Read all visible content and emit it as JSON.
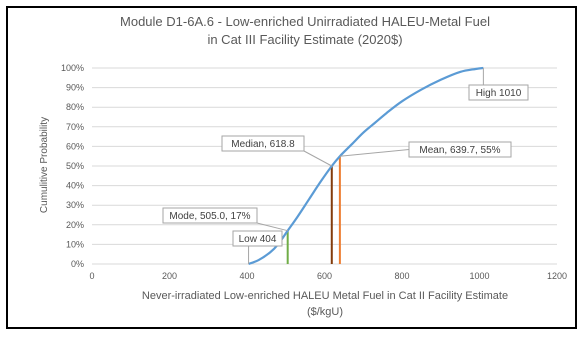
{
  "colors": {
    "curve": "#5b9bd5",
    "mode_line": "#70ad47",
    "median_line": "#843c0c",
    "mean_line": "#ed7d31",
    "grid": "#d9d9d9",
    "text": "#595959"
  },
  "chart_data": {
    "type": "line",
    "title_line1": "Module D1-6A.6 - Low-enriched  Unirradiated HALEU-Metal Fuel",
    "title_line2": "in Cat III Facility Estimate (2020$)",
    "xlabel_line1": "Never-irradiated Low-enriched HALEU Metal Fuel in Cat II Facility Estimate",
    "xlabel_line2": "($/kgU)",
    "ylabel": "Cumulitive Probability",
    "xlim": [
      0,
      1200
    ],
    "ylim": [
      0,
      1
    ],
    "x_ticks": [
      "0",
      "200",
      "400",
      "600",
      "800",
      "1000",
      "1200"
    ],
    "y_ticks": [
      "0%",
      "10%",
      "20%",
      "30%",
      "40%",
      "50%",
      "60%",
      "70%",
      "80%",
      "90%",
      "100%"
    ],
    "grid": true,
    "series": [
      {
        "x": [
          404,
          430,
          460,
          480,
          505,
          530,
          560,
          590,
          618.8,
          639.7,
          670,
          700,
          730,
          760,
          800,
          850,
          900,
          950,
          990,
          1010
        ],
        "y": [
          0.0,
          0.02,
          0.06,
          0.1,
          0.17,
          0.24,
          0.33,
          0.42,
          0.5,
          0.55,
          0.61,
          0.67,
          0.72,
          0.77,
          0.83,
          0.89,
          0.94,
          0.98,
          0.995,
          1.0
        ]
      }
    ],
    "vertical_markers": [
      {
        "key": "mode",
        "x": 505.0,
        "y": 0.17
      },
      {
        "key": "median",
        "x": 618.8,
        "y": 0.5
      },
      {
        "key": "mean",
        "x": 639.7,
        "y": 0.55
      }
    ],
    "annotations": {
      "low": "Low 404",
      "mode": "Mode, 505.0, 17%",
      "median": "Median, 618.8",
      "mean": "Mean, 639.7, 55%",
      "high": "High 1010"
    }
  }
}
